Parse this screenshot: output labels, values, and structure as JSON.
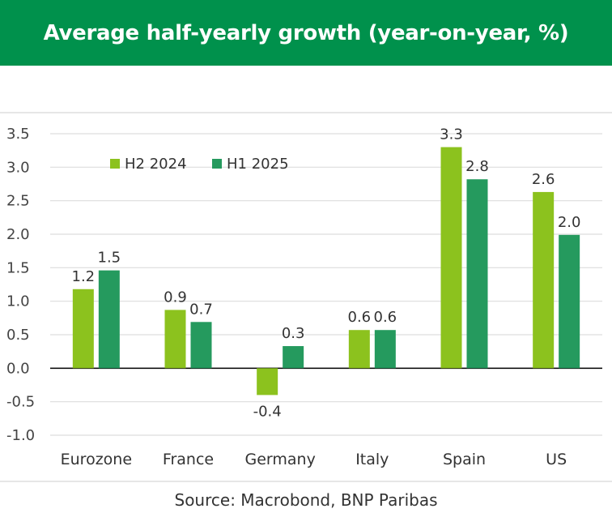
{
  "header": {
    "title": "Average half-yearly growth (year-on-year, %)"
  },
  "colors": {
    "header_bg": "#00914c",
    "series_1": "#8cc21e",
    "series_2": "#259a5e",
    "grid": "#dddddd",
    "zero_line": "#000000"
  },
  "source": "Source: Macrobond, BNP Paribas",
  "chart_data": {
    "type": "bar",
    "title": "Average half-yearly growth (year-on-year, %)",
    "xlabel": "",
    "ylabel": "",
    "ylim": [
      -1.0,
      3.5
    ],
    "yticks": [
      3.5,
      3.0,
      2.5,
      2.0,
      1.5,
      1.0,
      0.5,
      0.0,
      -0.5,
      -1.0
    ],
    "ytick_labels": [
      "3.5",
      "3.0",
      "2.5",
      "2.0",
      "1.5",
      "1.0",
      "0.5",
      "0.0",
      "-0.5",
      "-1.0"
    ],
    "grid": true,
    "legend_position": "top-left",
    "categories": [
      "Eurozone",
      "France",
      "Germany",
      "Italy",
      "Spain",
      "US"
    ],
    "series": [
      {
        "name": "H2 2024",
        "color": "#8cc21e",
        "values": [
          1.18,
          0.87,
          -0.4,
          0.57,
          3.3,
          2.63
        ],
        "labels": [
          "1.2",
          "0.9",
          "-0.4",
          "0.6",
          "3.3",
          "2.6"
        ]
      },
      {
        "name": "H1 2025",
        "color": "#259a5e",
        "values": [
          1.46,
          0.69,
          0.33,
          0.57,
          2.82,
          1.99
        ],
        "labels": [
          "1.5",
          "0.7",
          "0.3",
          "0.6",
          "2.8",
          "2.0"
        ]
      }
    ]
  }
}
